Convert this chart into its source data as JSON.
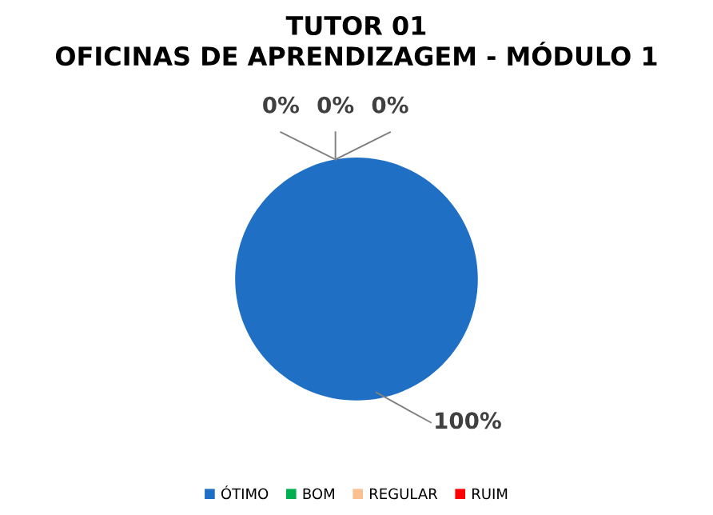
{
  "chart_data": {
    "type": "pie",
    "title": "TUTOR 01\nOFICINAS DE APRENDIZAGEM - MÓDULO 1",
    "categories": [
      "ÓTIMO",
      "BOM",
      "REGULAR",
      "RUIM"
    ],
    "values": [
      100,
      0,
      0,
      0
    ],
    "colors": [
      "#1f6fc5",
      "#00b050",
      "#fac090",
      "#ff0000"
    ],
    "value_labels": [
      "100%",
      "0%",
      "0%",
      "0%"
    ],
    "legend": "bottom"
  }
}
